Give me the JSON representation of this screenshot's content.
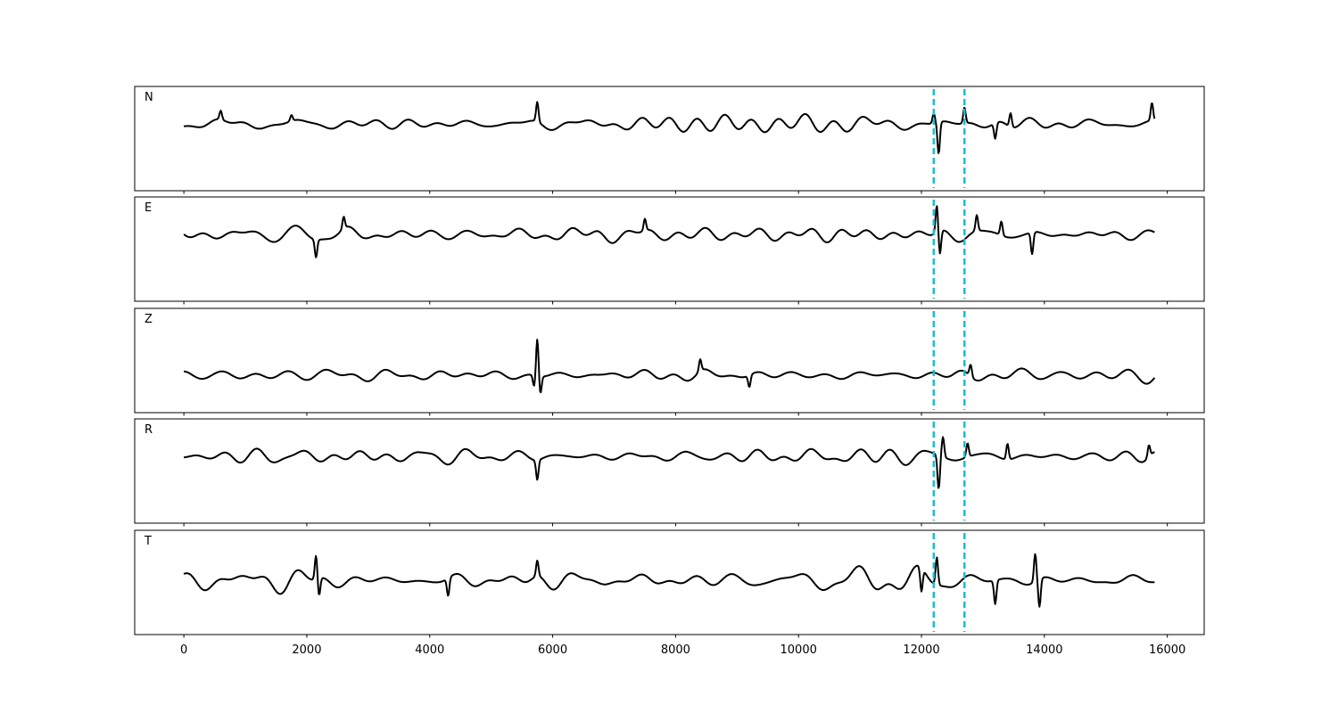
{
  "chart_data": {
    "type": "line",
    "description_free": true,
    "xlim": [
      -800,
      16600
    ],
    "xticks": [
      0,
      2000,
      4000,
      6000,
      8000,
      10000,
      12000,
      14000,
      16000
    ],
    "x_range": [
      0,
      15800
    ],
    "y_axis_visible": false,
    "grid": false,
    "markers": [
      {
        "x": 12200,
        "color": "#17becf",
        "style": "dashed"
      },
      {
        "x": 12700,
        "color": "#17becf",
        "style": "dashed"
      }
    ],
    "panels": [
      {
        "label": "N",
        "color": "#000000",
        "noise_amp": 0.3,
        "seed": 11,
        "events": [
          {
            "x": 600,
            "amp": 0.45
          },
          {
            "x": 1750,
            "amp": 0.3
          },
          {
            "x": 5750,
            "amp": 1.0
          },
          {
            "x": 12200,
            "amp": 0.5
          },
          {
            "x": 12280,
            "amp": -1.6
          },
          {
            "x": 12700,
            "amp": 0.8
          },
          {
            "x": 13200,
            "amp": -0.8
          },
          {
            "x": 13450,
            "amp": 0.7
          },
          {
            "x": 15750,
            "amp": 0.9
          }
        ]
      },
      {
        "label": "E",
        "color": "#000000",
        "noise_amp": 0.35,
        "seed": 23,
        "events": [
          {
            "x": 2150,
            "amp": -0.9
          },
          {
            "x": 2600,
            "amp": 0.6
          },
          {
            "x": 7500,
            "amp": 0.6
          },
          {
            "x": 12250,
            "amp": 1.4
          },
          {
            "x": 12300,
            "amp": -1.2
          },
          {
            "x": 12900,
            "amp": 0.8
          },
          {
            "x": 13300,
            "amp": 0.7
          },
          {
            "x": 13800,
            "amp": -1.1
          }
        ]
      },
      {
        "label": "Z",
        "color": "#000000",
        "noise_amp": 0.25,
        "seed": 37,
        "events": [
          {
            "x": 5700,
            "amp": -0.6
          },
          {
            "x": 5750,
            "amp": 1.9
          },
          {
            "x": 5800,
            "amp": -0.9
          },
          {
            "x": 8400,
            "amp": 0.6
          },
          {
            "x": 9200,
            "amp": -0.6
          },
          {
            "x": 12800,
            "amp": 0.6
          }
        ]
      },
      {
        "label": "R",
        "color": "#000000",
        "noise_amp": 0.3,
        "seed": 41,
        "events": [
          {
            "x": 5750,
            "amp": -1.0
          },
          {
            "x": 12280,
            "amp": -1.7
          },
          {
            "x": 12350,
            "amp": 1.0
          },
          {
            "x": 12750,
            "amp": 0.7
          },
          {
            "x": 13400,
            "amp": 0.8
          },
          {
            "x": 15700,
            "amp": 0.6
          }
        ]
      },
      {
        "label": "T",
        "color": "#000000",
        "noise_amp": 0.45,
        "seed": 53,
        "events": [
          {
            "x": 2150,
            "amp": 1.2
          },
          {
            "x": 2200,
            "amp": -0.9
          },
          {
            "x": 4300,
            "amp": -0.9
          },
          {
            "x": 5750,
            "amp": 0.8
          },
          {
            "x": 12000,
            "amp": -1.2
          },
          {
            "x": 12250,
            "amp": 1.4
          },
          {
            "x": 13200,
            "amp": -1.2
          },
          {
            "x": 13850,
            "amp": 1.4
          },
          {
            "x": 13920,
            "amp": -1.4
          }
        ]
      }
    ]
  }
}
